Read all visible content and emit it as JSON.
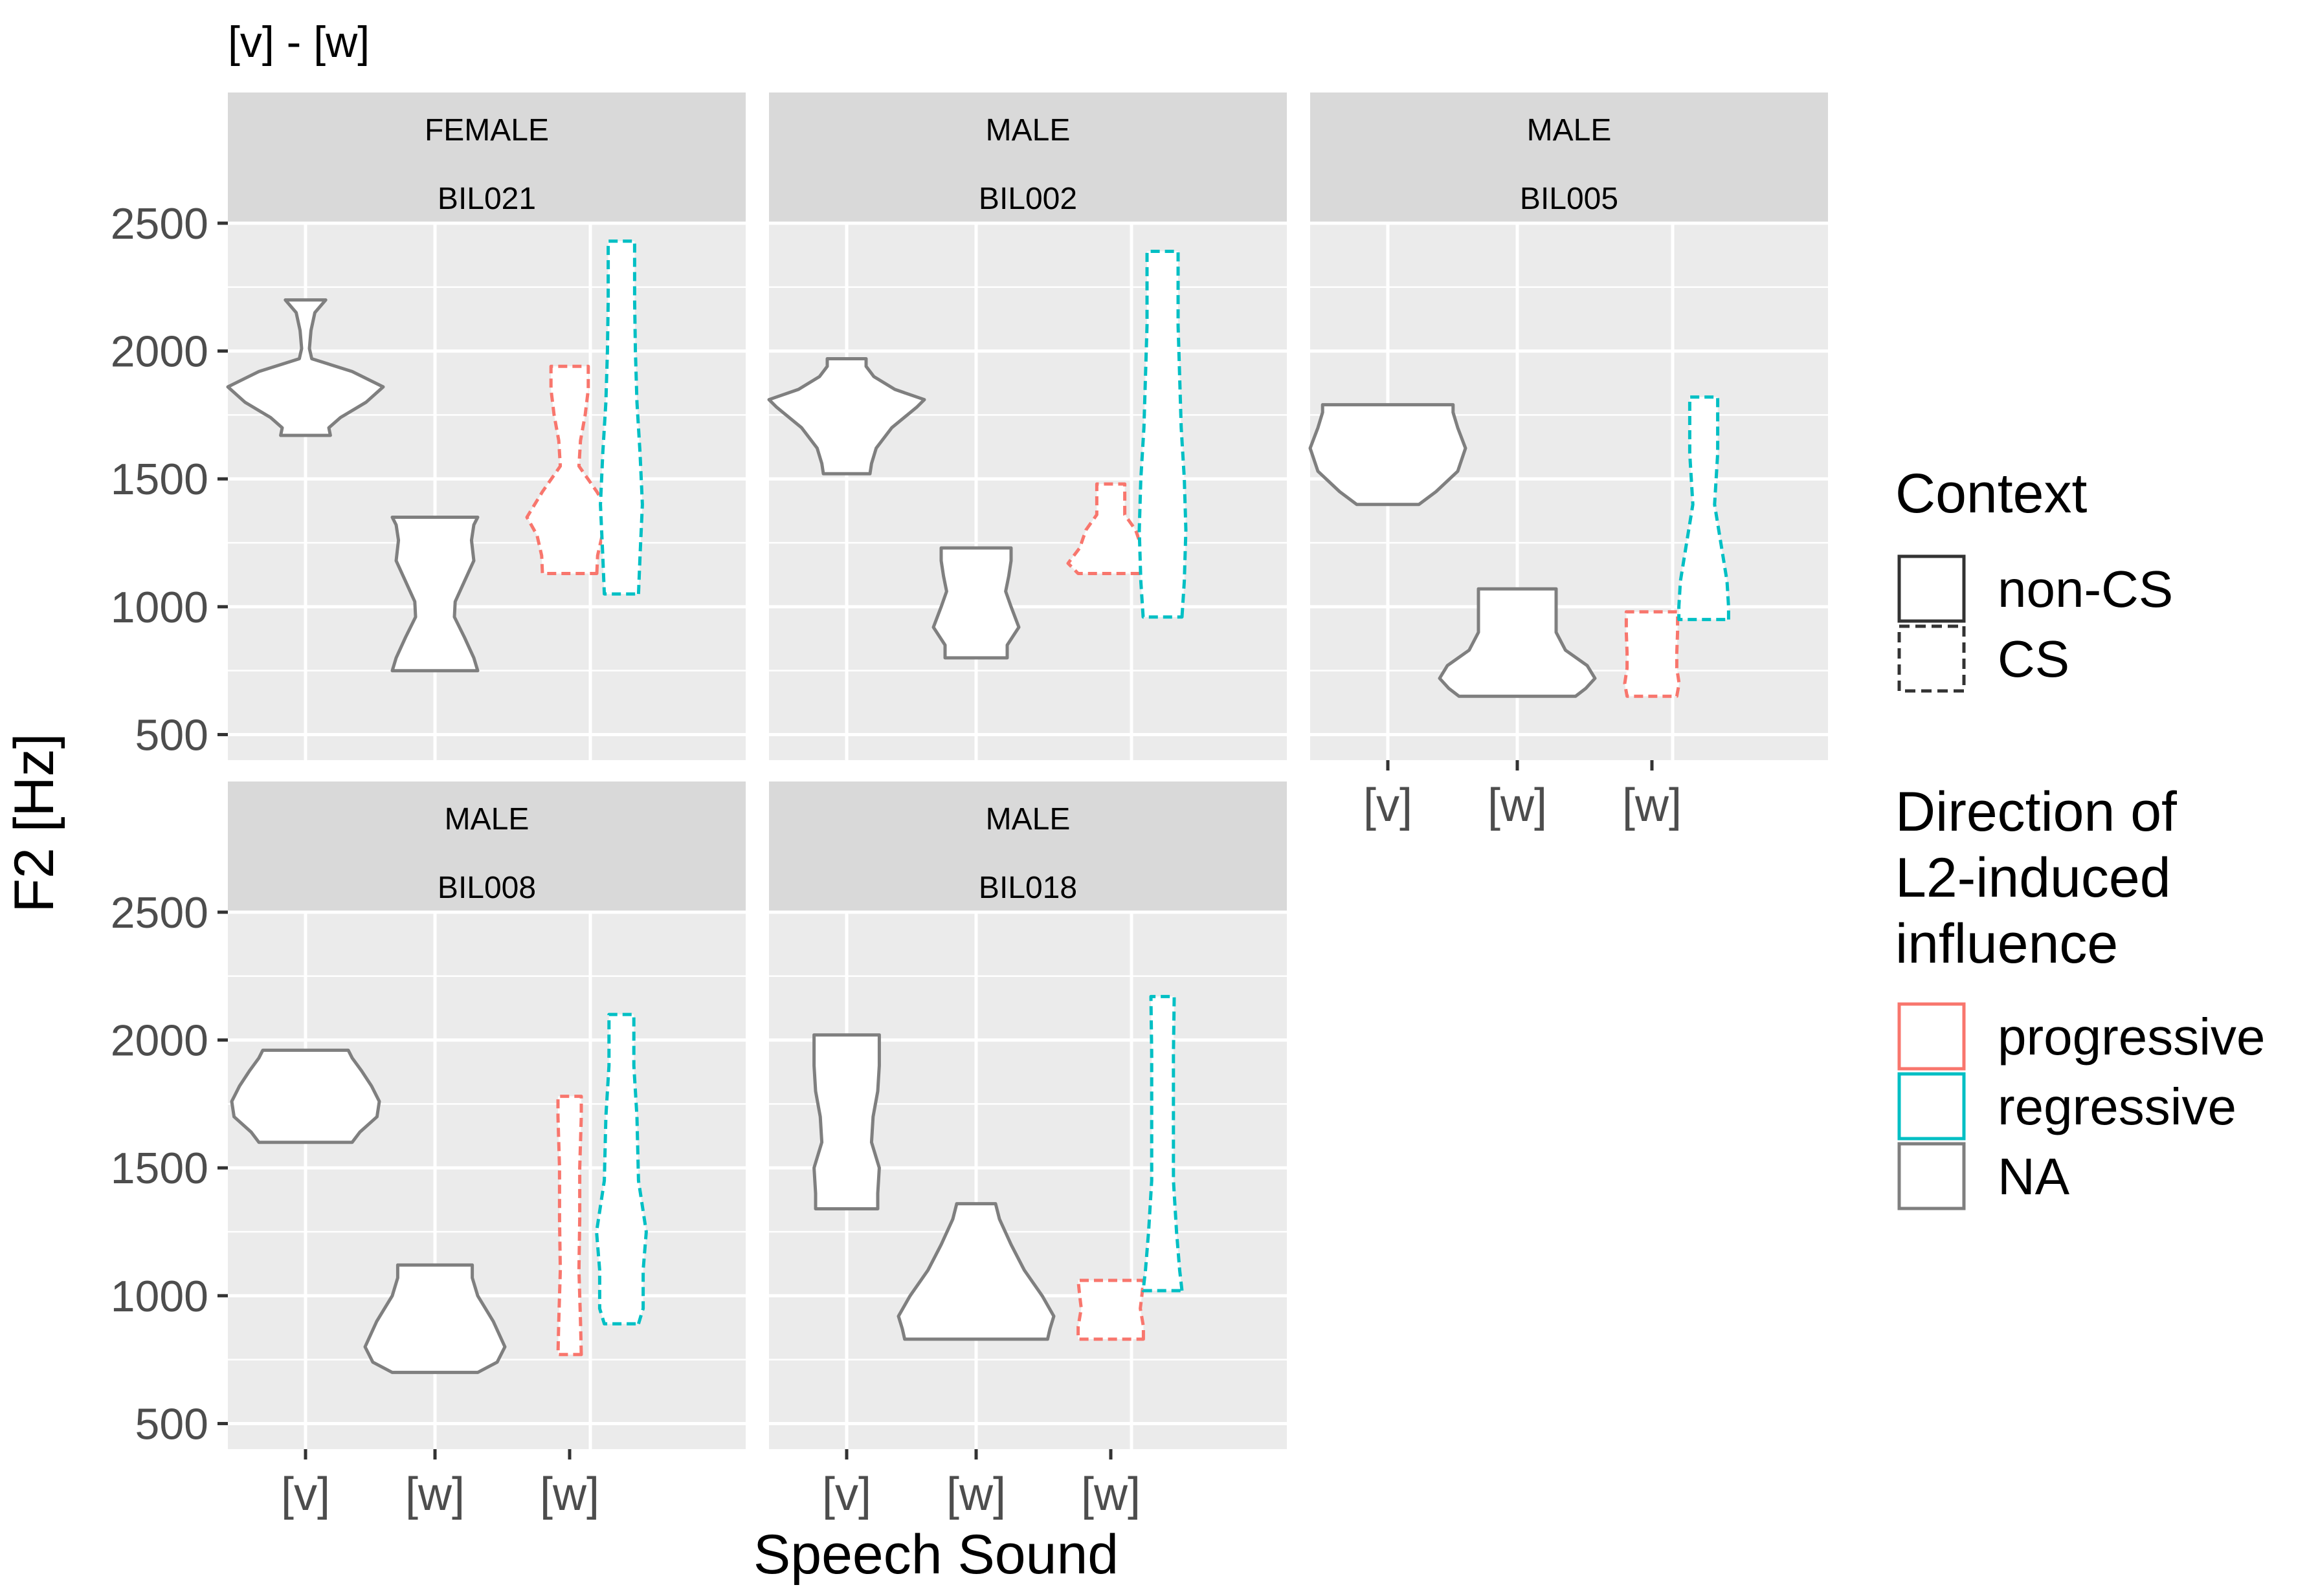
{
  "chart_data": {
    "type": "violin",
    "title": "[v] - [w]",
    "xlabel": "Speech Sound",
    "ylabel": "F2 [Hz]",
    "ylim": [
      400,
      2500
    ],
    "yticks": [
      500,
      1000,
      1500,
      2000,
      2500
    ],
    "grid": true,
    "legend_position": "right",
    "categories": [
      "[v]",
      "[w]",
      "[w]"
    ],
    "legend": {
      "context": {
        "title": "Context",
        "items": [
          "non-CS",
          "CS"
        ]
      },
      "direction": {
        "title_lines": [
          "Direction of",
          "L2-induced",
          "influence"
        ],
        "items": [
          "progressive",
          "regressive",
          "NA"
        ]
      }
    },
    "colors": {
      "progressive": "#F8766D",
      "regressive": "#00BFC4",
      "NA": "#7F7F7F",
      "panel_bg": "#EBEBEB",
      "strip_bg": "#D9D9D9",
      "grid": "#FFFFFF",
      "text": "#000000",
      "axis_text": "#4D4D4D"
    },
    "panels": [
      {
        "gender": "FEMALE",
        "speaker": "BIL021",
        "violins": [
          {
            "sound": "[v]",
            "context": "non-CS",
            "direction": "NA",
            "min": 1670,
            "max": 2200,
            "profile": [
              [
                1670,
                0.32
              ],
              [
                1700,
                0.3
              ],
              [
                1740,
                0.45
              ],
              [
                1800,
                0.78
              ],
              [
                1860,
                1.0
              ],
              [
                1920,
                0.6
              ],
              [
                1970,
                0.08
              ],
              [
                2010,
                0.05
              ],
              [
                2080,
                0.07
              ],
              [
                2150,
                0.12
              ],
              [
                2200,
                0.26
              ]
            ]
          },
          {
            "sound": "[w]",
            "context": "non-CS",
            "direction": "NA",
            "min": 750,
            "max": 1350,
            "profile": [
              [
                750,
                0.55
              ],
              [
                800,
                0.5
              ],
              [
                880,
                0.38
              ],
              [
                960,
                0.25
              ],
              [
                1020,
                0.26
              ],
              [
                1100,
                0.38
              ],
              [
                1180,
                0.5
              ],
              [
                1260,
                0.47
              ],
              [
                1320,
                0.5
              ],
              [
                1350,
                0.55
              ]
            ]
          },
          {
            "sound": "[w]",
            "context": "CS",
            "direction": "progressive",
            "min": 1130,
            "max": 1940,
            "profile": [
              [
                1130,
                0.35
              ],
              [
                1200,
                0.36
              ],
              [
                1280,
                0.42
              ],
              [
                1350,
                0.55
              ],
              [
                1450,
                0.35
              ],
              [
                1550,
                0.12
              ],
              [
                1650,
                0.14
              ],
              [
                1750,
                0.2
              ],
              [
                1850,
                0.24
              ],
              [
                1940,
                0.24
              ]
            ]
          },
          {
            "sound": "[w]",
            "context": "CS",
            "direction": "regressive",
            "min": 1050,
            "max": 2430,
            "profile": [
              [
                1050,
                0.22
              ],
              [
                1200,
                0.24
              ],
              [
                1400,
                0.27
              ],
              [
                1600,
                0.24
              ],
              [
                1800,
                0.2
              ],
              [
                2000,
                0.18
              ],
              [
                2200,
                0.17
              ],
              [
                2430,
                0.17
              ]
            ]
          }
        ]
      },
      {
        "gender": "MALE",
        "speaker": "BIL002",
        "violins": [
          {
            "sound": "[v]",
            "context": "non-CS",
            "direction": "NA",
            "min": 1520,
            "max": 1970,
            "profile": [
              [
                1520,
                0.3
              ],
              [
                1560,
                0.32
              ],
              [
                1620,
                0.38
              ],
              [
                1700,
                0.58
              ],
              [
                1780,
                0.9
              ],
              [
                1810,
                1.0
              ],
              [
                1850,
                0.62
              ],
              [
                1900,
                0.35
              ],
              [
                1940,
                0.25
              ],
              [
                1970,
                0.25
              ]
            ]
          },
          {
            "sound": "[w]",
            "context": "non-CS",
            "direction": "NA",
            "min": 800,
            "max": 1230,
            "profile": [
              [
                800,
                0.4
              ],
              [
                850,
                0.4
              ],
              [
                920,
                0.55
              ],
              [
                1000,
                0.45
              ],
              [
                1060,
                0.38
              ],
              [
                1120,
                0.42
              ],
              [
                1180,
                0.45
              ],
              [
                1230,
                0.45
              ]
            ]
          },
          {
            "sound": "[w]",
            "context": "CS",
            "direction": "progressive",
            "min": 1130,
            "max": 1480,
            "profile": [
              [
                1130,
                0.42
              ],
              [
                1170,
                0.55
              ],
              [
                1230,
                0.4
              ],
              [
                1300,
                0.32
              ],
              [
                1360,
                0.18
              ],
              [
                1420,
                0.18
              ],
              [
                1480,
                0.18
              ]
            ]
          },
          {
            "sound": "[w]",
            "context": "CS",
            "direction": "regressive",
            "min": 960,
            "max": 2390,
            "profile": [
              [
                960,
                0.25
              ],
              [
                1100,
                0.28
              ],
              [
                1300,
                0.3
              ],
              [
                1500,
                0.28
              ],
              [
                1700,
                0.24
              ],
              [
                1900,
                0.22
              ],
              [
                2100,
                0.2
              ],
              [
                2390,
                0.2
              ]
            ]
          }
        ]
      },
      {
        "gender": "MALE",
        "speaker": "BIL005",
        "violins": [
          {
            "sound": "[v]",
            "context": "non-CS",
            "direction": "NA",
            "min": 1400,
            "max": 1790,
            "profile": [
              [
                1400,
                0.4
              ],
              [
                1450,
                0.62
              ],
              [
                1530,
                0.9
              ],
              [
                1620,
                1.0
              ],
              [
                1700,
                0.9
              ],
              [
                1760,
                0.84
              ],
              [
                1790,
                0.84
              ]
            ]
          },
          {
            "sound": "[w]",
            "context": "non-CS",
            "direction": "NA",
            "min": 650,
            "max": 1070,
            "profile": [
              [
                650,
                0.75
              ],
              [
                680,
                0.88
              ],
              [
                720,
                1.0
              ],
              [
                770,
                0.9
              ],
              [
                830,
                0.62
              ],
              [
                900,
                0.5
              ],
              [
                1000,
                0.5
              ],
              [
                1070,
                0.5
              ]
            ]
          },
          {
            "sound": "[w]",
            "context": "CS",
            "direction": "progressive",
            "min": 650,
            "max": 980,
            "profile": [
              [
                650,
                0.32
              ],
              [
                700,
                0.35
              ],
              [
                760,
                0.32
              ],
              [
                820,
                0.32
              ],
              [
                900,
                0.33
              ],
              [
                980,
                0.33
              ]
            ]
          },
          {
            "sound": "[w]",
            "context": "CS",
            "direction": "regressive",
            "min": 950,
            "max": 1820,
            "profile": [
              [
                950,
                0.32
              ],
              [
                1000,
                0.32
              ],
              [
                1100,
                0.3
              ],
              [
                1250,
                0.22
              ],
              [
                1400,
                0.14
              ],
              [
                1600,
                0.18
              ],
              [
                1820,
                0.18
              ]
            ]
          }
        ]
      },
      {
        "gender": "MALE",
        "speaker": "BIL008",
        "violins": [
          {
            "sound": "[v]",
            "context": "non-CS",
            "direction": "NA",
            "min": 1600,
            "max": 1960,
            "profile": [
              [
                1600,
                0.6
              ],
              [
                1640,
                0.7
              ],
              [
                1700,
                0.92
              ],
              [
                1760,
                0.95
              ],
              [
                1820,
                0.85
              ],
              [
                1880,
                0.72
              ],
              [
                1930,
                0.6
              ],
              [
                1960,
                0.55
              ]
            ]
          },
          {
            "sound": "[w]",
            "context": "non-CS",
            "direction": "NA",
            "min": 700,
            "max": 1120,
            "profile": [
              [
                700,
                0.55
              ],
              [
                740,
                0.8
              ],
              [
                800,
                0.9
              ],
              [
                900,
                0.75
              ],
              [
                1000,
                0.55
              ],
              [
                1070,
                0.48
              ],
              [
                1120,
                0.48
              ]
            ]
          },
          {
            "sound": "[w]",
            "context": "CS",
            "direction": "progressive",
            "min": 770,
            "max": 1780,
            "profile": [
              [
                770,
                0.15
              ],
              [
                900,
                0.14
              ],
              [
                1100,
                0.12
              ],
              [
                1300,
                0.13
              ],
              [
                1500,
                0.13
              ],
              [
                1700,
                0.15
              ],
              [
                1780,
                0.15
              ]
            ]
          },
          {
            "sound": "[w]",
            "context": "CS",
            "direction": "regressive",
            "min": 890,
            "max": 2100,
            "profile": [
              [
                890,
                0.22
              ],
              [
                950,
                0.28
              ],
              [
                1100,
                0.28
              ],
              [
                1250,
                0.32
              ],
              [
                1450,
                0.22
              ],
              [
                1700,
                0.2
              ],
              [
                1900,
                0.16
              ],
              [
                2100,
                0.16
              ]
            ]
          }
        ]
      },
      {
        "gender": "MALE",
        "speaker": "BIL018",
        "violins": [
          {
            "sound": "[v]",
            "context": "non-CS",
            "direction": "NA",
            "min": 1340,
            "max": 2020,
            "profile": [
              [
                1340,
                0.4
              ],
              [
                1400,
                0.4
              ],
              [
                1500,
                0.42
              ],
              [
                1600,
                0.32
              ],
              [
                1700,
                0.34
              ],
              [
                1800,
                0.4
              ],
              [
                1900,
                0.42
              ],
              [
                2020,
                0.42
              ]
            ]
          },
          {
            "sound": "[w]",
            "context": "non-CS",
            "direction": "NA",
            "min": 830,
            "max": 1360,
            "profile": [
              [
                830,
                0.92
              ],
              [
                870,
                0.95
              ],
              [
                920,
                1.0
              ],
              [
                1000,
                0.85
              ],
              [
                1100,
                0.62
              ],
              [
                1200,
                0.45
              ],
              [
                1300,
                0.3
              ],
              [
                1360,
                0.25
              ]
            ]
          },
          {
            "sound": "[w]",
            "context": "CS",
            "direction": "progressive",
            "min": 830,
            "max": 1060,
            "profile": [
              [
                830,
                0.42
              ],
              [
                880,
                0.42
              ],
              [
                950,
                0.38
              ],
              [
                1000,
                0.4
              ],
              [
                1060,
                0.42
              ]
            ]
          },
          {
            "sound": "[w]",
            "context": "CS",
            "direction": "regressive",
            "min": 1020,
            "max": 2170,
            "profile": [
              [
                1020,
                0.25
              ],
              [
                1100,
                0.22
              ],
              [
                1250,
                0.18
              ],
              [
                1450,
                0.14
              ],
              [
                1700,
                0.14
              ],
              [
                1950,
                0.14
              ],
              [
                2170,
                0.15
              ]
            ]
          }
        ]
      }
    ]
  }
}
